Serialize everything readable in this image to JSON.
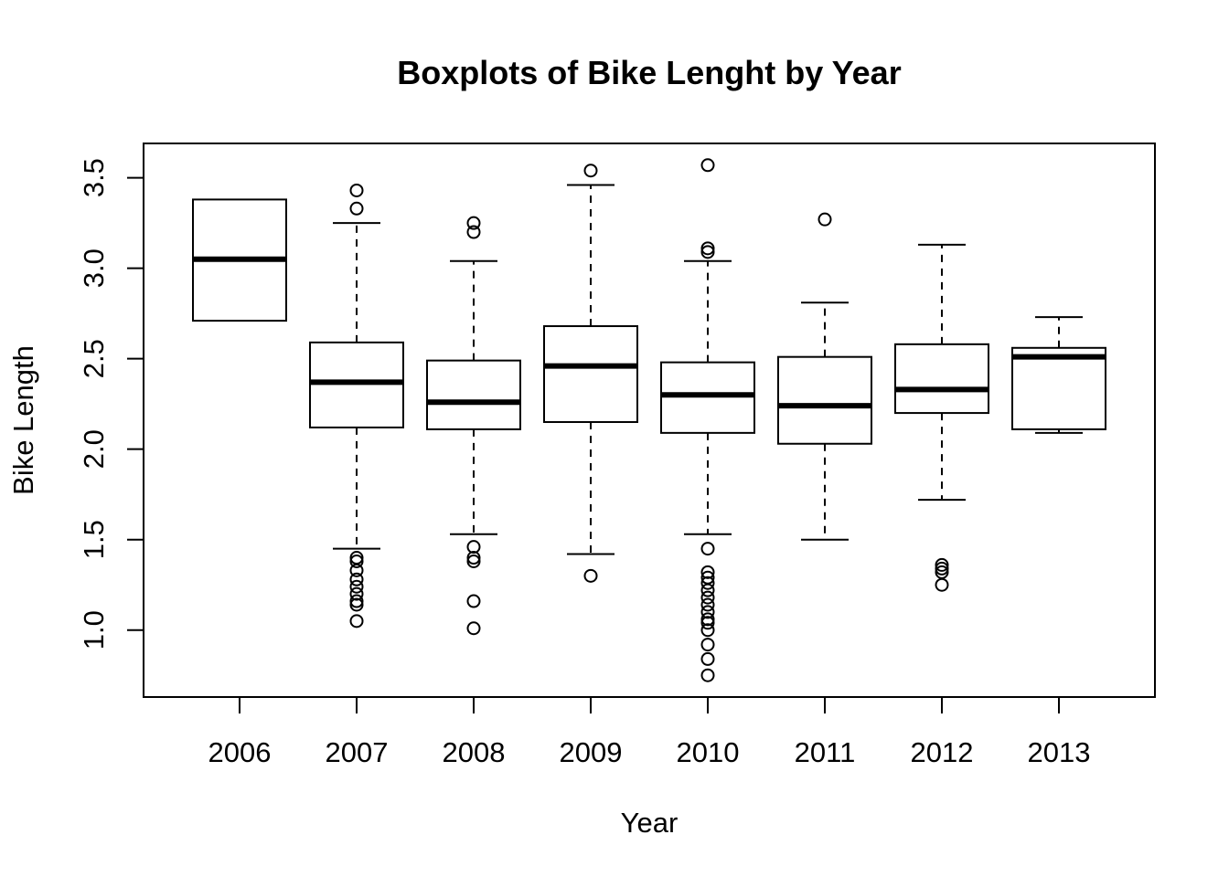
{
  "chart_data": {
    "type": "boxplot",
    "title": "Boxplots of Bike Lenght by Year",
    "xlabel": "Year",
    "ylabel": "Bike Length",
    "ylim": [
      0.63,
      3.69
    ],
    "yticks": [
      "1.0",
      "1.5",
      "2.0",
      "2.5",
      "3.0",
      "3.5"
    ],
    "grid": false,
    "categories": [
      "2006",
      "2007",
      "2008",
      "2009",
      "2010",
      "2011",
      "2012",
      "2013"
    ],
    "boxes": [
      {
        "category": "2006",
        "whisker_low": null,
        "q1": 2.71,
        "median": 3.05,
        "q3": 3.38,
        "whisker_high": null,
        "outliers": []
      },
      {
        "category": "2007",
        "whisker_low": 1.45,
        "q1": 2.12,
        "median": 2.37,
        "q3": 2.59,
        "whisker_high": 3.25,
        "outliers": [
          3.43,
          3.33,
          1.4,
          1.38,
          1.33,
          1.28,
          1.24,
          1.2,
          1.16,
          1.14,
          1.05
        ]
      },
      {
        "category": "2008",
        "whisker_low": 1.53,
        "q1": 2.11,
        "median": 2.26,
        "q3": 2.49,
        "whisker_high": 3.04,
        "outliers": [
          3.25,
          3.2,
          1.46,
          1.4,
          1.38,
          1.16,
          1.01
        ]
      },
      {
        "category": "2009",
        "whisker_low": 1.42,
        "q1": 2.15,
        "median": 2.46,
        "q3": 2.68,
        "whisker_high": 3.46,
        "outliers": [
          3.54,
          1.3
        ]
      },
      {
        "category": "2010",
        "whisker_low": 1.53,
        "q1": 2.09,
        "median": 2.3,
        "q3": 2.48,
        "whisker_high": 3.04,
        "outliers": [
          3.57,
          3.11,
          3.09,
          1.45,
          1.32,
          1.29,
          1.26,
          1.22,
          1.18,
          1.14,
          1.1,
          1.06,
          1.04,
          1.0,
          0.92,
          0.84,
          0.75
        ]
      },
      {
        "category": "2011",
        "whisker_low": 1.5,
        "q1": 2.03,
        "median": 2.24,
        "q3": 2.51,
        "whisker_high": 2.81,
        "outliers": [
          3.27
        ]
      },
      {
        "category": "2012",
        "whisker_low": 1.72,
        "q1": 2.2,
        "median": 2.33,
        "q3": 2.58,
        "whisker_high": 3.13,
        "outliers": [
          1.36,
          1.34,
          1.32,
          1.25
        ]
      },
      {
        "category": "2013",
        "whisker_low": 2.09,
        "q1": 2.11,
        "median": 2.51,
        "q3": 2.56,
        "whisker_high": 2.73,
        "outliers": []
      }
    ]
  }
}
